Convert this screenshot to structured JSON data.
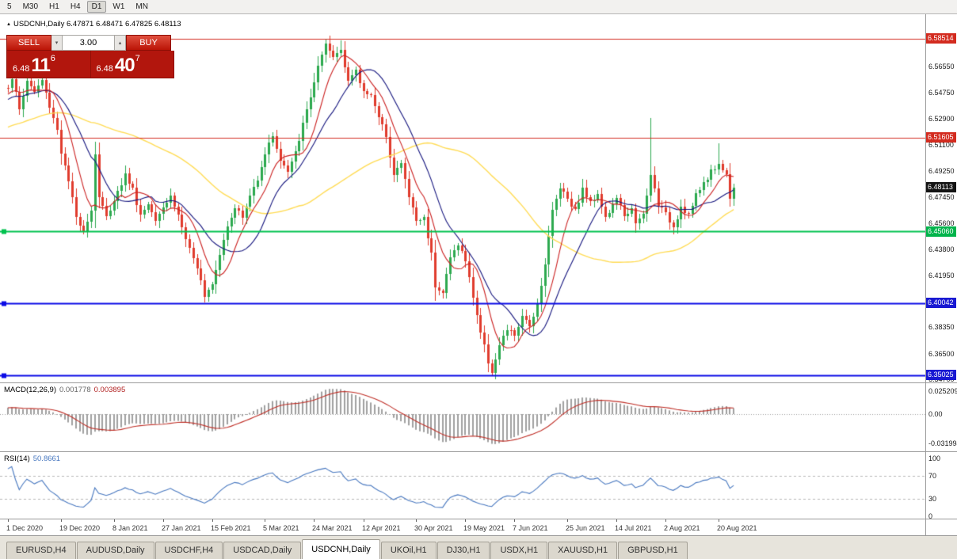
{
  "toolbar": {
    "periods": [
      "5",
      "M30",
      "H1",
      "H4",
      "D1",
      "W1",
      "MN"
    ],
    "active": "D1"
  },
  "icons": {
    "chart_marker": "▲",
    "spinner_up": "▴",
    "spinner_down": "▾"
  },
  "chart_header": {
    "title": "USDCNH,Daily 6.47871 6.48471 6.47825 6.48113"
  },
  "trade_panel": {
    "sell_label": "SELL",
    "buy_label": "BUY",
    "volume": "3.00",
    "sell_price": {
      "prefix": "6.48",
      "big": "11",
      "sup": "6"
    },
    "buy_price": {
      "prefix": "6.48",
      "big": "40",
      "sup": "7"
    }
  },
  "price_axis": {
    "ticks": [
      "6.56550",
      "6.54750",
      "6.52900",
      "6.51100",
      "6.49250",
      "6.47450",
      "6.45600",
      "6.43800",
      "6.41950",
      "6.38350",
      "6.36500",
      "6.34700"
    ]
  },
  "macd_panel": {
    "name": "MACD(12,26,9)",
    "value_main": "0.001778",
    "value_signal": "0.003895",
    "ticks": [
      "0.025209",
      "0.00",
      "-0.031994"
    ]
  },
  "rsi_panel": {
    "name": "RSI(14)",
    "value": "50.8661",
    "ticks": [
      "100",
      "70",
      "30",
      "0"
    ]
  },
  "date_axis": {
    "labels": [
      {
        "text": "1 Dec 2020",
        "bar": 0
      },
      {
        "text": "19 Dec 2020",
        "bar": 14
      },
      {
        "text": "8 Jan 2021",
        "bar": 28
      },
      {
        "text": "27 Jan 2021",
        "bar": 41
      },
      {
        "text": "15 Feb 2021",
        "bar": 54
      },
      {
        "text": "5 Mar 2021",
        "bar": 68
      },
      {
        "text": "24 Mar 2021",
        "bar": 81
      },
      {
        "text": "12 Apr 2021",
        "bar": 94
      },
      {
        "text": "30 Apr 2021",
        "bar": 108
      },
      {
        "text": "19 May 2021",
        "bar": 121
      },
      {
        "text": "7 Jun 2021",
        "bar": 134
      },
      {
        "text": "25 Jun 2021",
        "bar": 148
      },
      {
        "text": "14 Jul 2021",
        "bar": 161
      },
      {
        "text": "2 Aug 2021",
        "bar": 174
      },
      {
        "text": "20 Aug 2021",
        "bar": 188
      }
    ]
  },
  "tabs": {
    "items": [
      "EURUSD,H4",
      "AUDUSD,Daily",
      "USDCHF,H4",
      "USDCAD,Daily",
      "USDCNH,Daily",
      "UKOil,H1",
      "DJ30,H1",
      "USDX,H1",
      "XAUUSD,H1",
      "GBPUSD,H1"
    ],
    "active": "USDCNH,Daily"
  },
  "chart_data": {
    "type": "candlestick",
    "symbol": "USDCNH",
    "timeframe": "Daily",
    "ohlc_display": {
      "open": "6.47871",
      "high": "6.48471",
      "low": "6.47825",
      "close": "6.48113"
    },
    "current_price": 6.4811,
    "bar_count": 193,
    "y_range": {
      "max": 6.6022,
      "min": 6.345
    },
    "price_anchors": [
      [
        0,
        6.552
      ],
      [
        1,
        6.558
      ],
      [
        3,
        6.535
      ],
      [
        5,
        6.556
      ],
      [
        7,
        6.548
      ],
      [
        9,
        6.556
      ],
      [
        11,
        6.538
      ],
      [
        13,
        6.522
      ],
      [
        14,
        6.506
      ],
      [
        16,
        6.485
      ],
      [
        18,
        6.46
      ],
      [
        20,
        6.452
      ],
      [
        22,
        6.465
      ],
      [
        23,
        6.505
      ],
      [
        24,
        6.475
      ],
      [
        26,
        6.46
      ],
      [
        28,
        6.473
      ],
      [
        29,
        6.478
      ],
      [
        31,
        6.49
      ],
      [
        33,
        6.48
      ],
      [
        35,
        6.462
      ],
      [
        37,
        6.47
      ],
      [
        39,
        6.46
      ],
      [
        41,
        6.468
      ],
      [
        43,
        6.475
      ],
      [
        45,
        6.462
      ],
      [
        47,
        6.445
      ],
      [
        49,
        6.43
      ],
      [
        51,
        6.418
      ],
      [
        52,
        6.406
      ],
      [
        54,
        6.415
      ],
      [
        56,
        6.435
      ],
      [
        58,
        6.455
      ],
      [
        60,
        6.468
      ],
      [
        62,
        6.46
      ],
      [
        64,
        6.475
      ],
      [
        66,
        6.488
      ],
      [
        68,
        6.505
      ],
      [
        70,
        6.518
      ],
      [
        72,
        6.5
      ],
      [
        74,
        6.492
      ],
      [
        76,
        6.505
      ],
      [
        78,
        6.525
      ],
      [
        80,
        6.545
      ],
      [
        82,
        6.565
      ],
      [
        84,
        6.58
      ],
      [
        86,
        6.572
      ],
      [
        88,
        6.578
      ],
      [
        90,
        6.556
      ],
      [
        92,
        6.562
      ],
      [
        94,
        6.548
      ],
      [
        96,
        6.547
      ],
      [
        98,
        6.529
      ],
      [
        100,
        6.518
      ],
      [
        102,
        6.49
      ],
      [
        104,
        6.498
      ],
      [
        106,
        6.475
      ],
      [
        108,
        6.458
      ],
      [
        110,
        6.46
      ],
      [
        112,
        6.435
      ],
      [
        113,
        6.413
      ],
      [
        115,
        6.408
      ],
      [
        117,
        6.432
      ],
      [
        119,
        6.442
      ],
      [
        121,
        6.43
      ],
      [
        123,
        6.405
      ],
      [
        125,
        6.38
      ],
      [
        127,
        6.36
      ],
      [
        128,
        6.353
      ],
      [
        130,
        6.37
      ],
      [
        132,
        6.382
      ],
      [
        134,
        6.378
      ],
      [
        136,
        6.39
      ],
      [
        138,
        6.385
      ],
      [
        140,
        6.4
      ],
      [
        142,
        6.428
      ],
      [
        144,
        6.465
      ],
      [
        146,
        6.482
      ],
      [
        148,
        6.474
      ],
      [
        150,
        6.465
      ],
      [
        152,
        6.48
      ],
      [
        154,
        6.47
      ],
      [
        156,
        6.478
      ],
      [
        158,
        6.46
      ],
      [
        160,
        6.468
      ],
      [
        161,
        6.475
      ],
      [
        163,
        6.46
      ],
      [
        165,
        6.468
      ],
      [
        166,
        6.455
      ],
      [
        168,
        6.462
      ],
      [
        169,
        6.475
      ],
      [
        170,
        6.49
      ],
      [
        172,
        6.47
      ],
      [
        174,
        6.462
      ],
      [
        176,
        6.454
      ],
      [
        178,
        6.468
      ],
      [
        180,
        6.462
      ],
      [
        182,
        6.475
      ],
      [
        184,
        6.485
      ],
      [
        186,
        6.492
      ],
      [
        188,
        6.498
      ],
      [
        190,
        6.49
      ],
      [
        191,
        6.475
      ],
      [
        192,
        6.4811
      ]
    ],
    "wick_overrides": {
      "23": {
        "high": 6.513
      },
      "52": {
        "low": 6.401
      },
      "84": {
        "high": 6.58514
      },
      "88": {
        "high": 6.584
      },
      "113": {
        "low": 6.402
      },
      "128": {
        "low": 6.35025
      },
      "170": {
        "high": 6.53
      },
      "188": {
        "high": 6.512
      }
    },
    "levels": [
      {
        "price": 6.58514,
        "label": "6.58514",
        "line_color": "#D33025",
        "line_width": 1,
        "badge_color": "#D32B1F",
        "marker": false
      },
      {
        "price": 6.51605,
        "label": "6.51605",
        "line_color": "#D33025",
        "line_width": 1,
        "badge_color": "#D32B1F",
        "marker": false
      },
      {
        "price": 6.48113,
        "label": "6.48113",
        "line_color": "#141414",
        "line_width": 0,
        "badge_color": "#141414",
        "marker": false
      },
      {
        "price": 6.4506,
        "label": "6.45060",
        "line_color": "#00C24E",
        "line_width": 2,
        "badge_color": "#00B44B",
        "marker": true
      },
      {
        "price": 6.40042,
        "label": "6.40042",
        "line_color": "#0A0AE6",
        "line_width": 2,
        "badge_color": "#1919D2",
        "marker": true
      },
      {
        "price": 6.35025,
        "label": "6.35025",
        "line_color": "#0A0AE6",
        "line_width": 2,
        "badge_color": "#1919D2",
        "marker": true
      }
    ],
    "moving_averages": [
      {
        "period": 8,
        "color": "#CC2222"
      },
      {
        "period": 16,
        "color": "#14147E"
      },
      {
        "period": 55,
        "color": "#FFDC55"
      }
    ],
    "candle_up_color": "#2DA94F",
    "candle_down_color": "#E03B2D",
    "macd": {
      "fast": 12,
      "slow": 26,
      "signal": 9,
      "hist_color": "#A0A0A0",
      "line_color": "#C03028",
      "y_ticks": [
        0.025209,
        0,
        -0.031994
      ]
    },
    "rsi": {
      "period": 14,
      "color": "#4878C0",
      "levels": [
        70,
        30
      ],
      "y_ticks": [
        100,
        70,
        30,
        0
      ]
    }
  }
}
